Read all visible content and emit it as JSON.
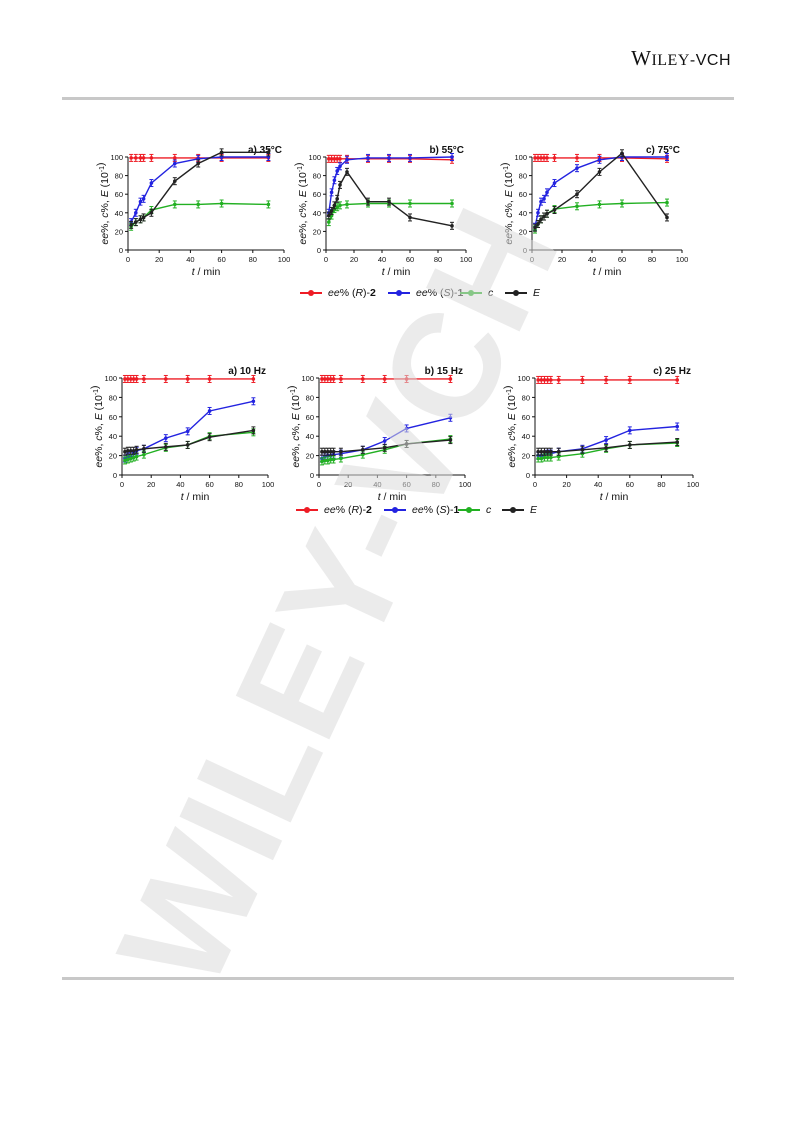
{
  "header": {
    "publisher_main": "Wiley",
    "publisher_suffix": "-VCH"
  },
  "watermark": {
    "text": "WILEY-VCH"
  },
  "colors": {
    "red": "#ee1c25",
    "blue": "#2323e0",
    "green": "#22b022",
    "black": "#222222"
  },
  "legend_top": [
    {
      "key": "red",
      "pre": "ee",
      "mid": "% (",
      "ital": "R",
      "post": ")-",
      "bold": "2"
    },
    {
      "key": "blue",
      "pre": "ee",
      "mid": "% (",
      "ital": "S",
      "post": ")-",
      "bold": "1"
    },
    {
      "key": "green",
      "pre": "",
      "mid": "",
      "ital": "c",
      "post": "",
      "bold": ""
    },
    {
      "key": "black",
      "pre": "",
      "mid": "",
      "ital": "E",
      "post": "",
      "bold": ""
    }
  ],
  "legend_bottom": [
    {
      "key": "red",
      "pre": "ee",
      "mid": "% (",
      "ital": "R",
      "post": ")-",
      "bold": "2"
    },
    {
      "key": "blue",
      "pre": "ee",
      "mid": "% (",
      "ital": "S",
      "post": ")-",
      "bold": "1"
    },
    {
      "key": "green",
      "pre": "",
      "mid": "",
      "ital": "c",
      "post": "",
      "bold": ""
    },
    {
      "key": "black",
      "pre": "",
      "mid": "",
      "ital": "E",
      "post": "",
      "bold": ""
    }
  ],
  "chart_data": [
    {
      "type": "line",
      "title": "a) 35°C",
      "xlabel": "t / min",
      "ylabel": "ee%, c%, E (10-1)",
      "xlim": [
        0,
        100
      ],
      "ylim": [
        0,
        100
      ],
      "xticks": [
        0,
        20,
        40,
        60,
        80,
        100
      ],
      "yticks": [
        0,
        20,
        40,
        60,
        80,
        100
      ],
      "series": [
        {
          "key": "red",
          "x": [
            2,
            5,
            8,
            10,
            15,
            30,
            45,
            60,
            90
          ],
          "values": [
            99,
            99,
            99,
            99,
            99,
            99,
            99,
            99,
            99
          ]
        },
        {
          "key": "blue",
          "x": [
            2,
            5,
            8,
            10,
            15,
            30,
            45,
            60,
            90
          ],
          "values": [
            30,
            40,
            52,
            55,
            72,
            93,
            98,
            100,
            100
          ]
        },
        {
          "key": "green",
          "x": [
            2,
            5,
            8,
            10,
            15,
            30,
            45,
            60,
            90
          ],
          "values": [
            25,
            30,
            33,
            35,
            43,
            49,
            49,
            50,
            49
          ]
        },
        {
          "key": "black",
          "x": [
            2,
            5,
            8,
            10,
            15,
            30,
            45,
            60,
            90
          ],
          "values": [
            27,
            30,
            33,
            35,
            40,
            74,
            93,
            105,
            105
          ]
        }
      ]
    },
    {
      "type": "line",
      "title": "b) 55°C",
      "xlabel": "t / min",
      "ylabel": "ee%, c%, E (10-1)",
      "xlim": [
        0,
        100
      ],
      "ylim": [
        0,
        100
      ],
      "xticks": [
        0,
        20,
        40,
        60,
        80,
        100
      ],
      "yticks": [
        0,
        20,
        40,
        60,
        80,
        100
      ],
      "series": [
        {
          "key": "red",
          "x": [
            2,
            4,
            6,
            8,
            10,
            15,
            30,
            45,
            60,
            90
          ],
          "values": [
            98,
            98,
            98,
            98,
            98,
            98,
            98,
            98,
            98,
            97
          ]
        },
        {
          "key": "blue",
          "x": [
            2,
            4,
            6,
            8,
            10,
            15,
            30,
            45,
            60,
            90
          ],
          "values": [
            40,
            62,
            75,
            85,
            90,
            97,
            99,
            99,
            99,
            100
          ]
        },
        {
          "key": "green",
          "x": [
            2,
            4,
            6,
            8,
            10,
            15,
            30,
            45,
            60,
            90
          ],
          "values": [
            30,
            37,
            44,
            46,
            48,
            49,
            50,
            50,
            50,
            50
          ]
        },
        {
          "key": "black",
          "x": [
            2,
            4,
            6,
            8,
            10,
            15,
            30,
            45,
            60,
            90
          ],
          "values": [
            37,
            42,
            48,
            55,
            70,
            84,
            52,
            52,
            35,
            26
          ]
        }
      ]
    },
    {
      "type": "line",
      "title": "c) 75°C",
      "xlabel": "t / min",
      "ylabel": "ee%, c%, E (10-1)",
      "xlim": [
        0,
        100
      ],
      "ylim": [
        0,
        100
      ],
      "xticks": [
        0,
        20,
        40,
        60,
        80,
        100
      ],
      "yticks": [
        0,
        20,
        40,
        60,
        80,
        100
      ],
      "series": [
        {
          "key": "red",
          "x": [
            2,
            4,
            6,
            8,
            10,
            15,
            30,
            45,
            60,
            90
          ],
          "values": [
            99,
            99,
            99,
            99,
            99,
            99,
            99,
            99,
            99,
            98
          ]
        },
        {
          "key": "blue",
          "x": [
            2,
            4,
            6,
            8,
            10,
            15,
            30,
            45,
            60,
            90
          ],
          "values": [
            25,
            40,
            52,
            55,
            62,
            72,
            88,
            97,
            100,
            100
          ]
        },
        {
          "key": "green",
          "x": [
            2,
            4,
            6,
            8,
            10,
            15,
            30,
            45,
            60,
            90
          ],
          "values": [
            22,
            28,
            33,
            36,
            39,
            44,
            47,
            49,
            50,
            51
          ]
        },
        {
          "key": "black",
          "x": [
            2,
            4,
            6,
            8,
            10,
            15,
            30,
            45,
            60,
            90
          ],
          "values": [
            24,
            28,
            33,
            36,
            39,
            43,
            60,
            84,
            104,
            35
          ]
        }
      ]
    },
    {
      "type": "line",
      "title": "a) 10 Hz",
      "xlabel": "t / min",
      "ylabel": "ee%, c%, E (10-1)",
      "xlim": [
        0,
        100
      ],
      "ylim": [
        0,
        100
      ],
      "xticks": [
        0,
        20,
        40,
        60,
        80,
        100
      ],
      "yticks": [
        0,
        20,
        40,
        60,
        80,
        100
      ],
      "series": [
        {
          "key": "red",
          "x": [
            2,
            4,
            6,
            8,
            10,
            15,
            30,
            45,
            60,
            90
          ],
          "values": [
            99,
            99,
            99,
            99,
            99,
            99,
            99,
            99,
            99,
            99
          ]
        },
        {
          "key": "blue",
          "x": [
            2,
            4,
            6,
            8,
            10,
            15,
            30,
            45,
            60,
            90
          ],
          "values": [
            17,
            19,
            20,
            22,
            25,
            27,
            38,
            45,
            66,
            76
          ]
        },
        {
          "key": "green",
          "x": [
            2,
            4,
            6,
            8,
            10,
            15,
            30,
            45,
            60,
            90
          ],
          "values": [
            15,
            16,
            17,
            18,
            19,
            21,
            28,
            31,
            40,
            44
          ]
        },
        {
          "key": "black",
          "x": [
            2,
            4,
            6,
            8,
            10,
            15,
            30,
            45,
            60,
            90
          ],
          "values": [
            24,
            25,
            25,
            25,
            26,
            27,
            29,
            31,
            39,
            46
          ]
        }
      ]
    },
    {
      "type": "line",
      "title": "b) 15 Hz",
      "xlabel": "t / min",
      "ylabel": "ee%, c%, E (10-1)",
      "xlim": [
        0,
        100
      ],
      "ylim": [
        0,
        100
      ],
      "xticks": [
        0,
        20,
        40,
        60,
        80,
        100
      ],
      "yticks": [
        0,
        20,
        40,
        60,
        80,
        100
      ],
      "series": [
        {
          "key": "red",
          "x": [
            2,
            4,
            6,
            8,
            10,
            15,
            30,
            45,
            60,
            90
          ],
          "values": [
            99,
            99,
            99,
            99,
            99,
            99,
            99,
            99,
            99,
            99
          ]
        },
        {
          "key": "blue",
          "x": [
            2,
            4,
            6,
            8,
            10,
            15,
            30,
            45,
            60,
            90
          ],
          "values": [
            17,
            19,
            20,
            20,
            21,
            22,
            26,
            35,
            48,
            59
          ]
        },
        {
          "key": "green",
          "x": [
            2,
            4,
            6,
            8,
            10,
            15,
            30,
            45,
            60,
            90
          ],
          "values": [
            14,
            15,
            15,
            16,
            16,
            17,
            21,
            26,
            32,
            37
          ]
        },
        {
          "key": "black",
          "x": [
            2,
            4,
            6,
            8,
            10,
            15,
            30,
            45,
            60,
            90
          ],
          "values": [
            24,
            24,
            24,
            24,
            24,
            24,
            26,
            28,
            32,
            36
          ]
        }
      ]
    },
    {
      "type": "line",
      "title": "c) 25 Hz",
      "xlabel": "t / min",
      "ylabel": "ee%, c%, E (10-1)",
      "xlim": [
        0,
        100
      ],
      "ylim": [
        0,
        100
      ],
      "xticks": [
        0,
        20,
        40,
        60,
        80,
        100
      ],
      "yticks": [
        0,
        20,
        40,
        60,
        80,
        100
      ],
      "series": [
        {
          "key": "red",
          "x": [
            2,
            4,
            6,
            8,
            10,
            15,
            30,
            45,
            60,
            90
          ],
          "values": [
            98,
            98,
            98,
            98,
            98,
            98,
            98,
            98,
            98,
            98
          ]
        },
        {
          "key": "blue",
          "x": [
            2,
            4,
            6,
            8,
            10,
            15,
            30,
            45,
            60,
            90
          ],
          "values": [
            20,
            20,
            21,
            22,
            22,
            24,
            27,
            36,
            46,
            50
          ]
        },
        {
          "key": "green",
          "x": [
            2,
            4,
            6,
            8,
            10,
            15,
            30,
            45,
            60,
            90
          ],
          "values": [
            17,
            17,
            18,
            18,
            18,
            19,
            22,
            27,
            31,
            33
          ]
        },
        {
          "key": "black",
          "x": [
            2,
            4,
            6,
            8,
            10,
            15,
            30,
            45,
            60,
            90
          ],
          "values": [
            24,
            24,
            24,
            24,
            24,
            24,
            26,
            28,
            31,
            34
          ]
        }
      ]
    }
  ]
}
